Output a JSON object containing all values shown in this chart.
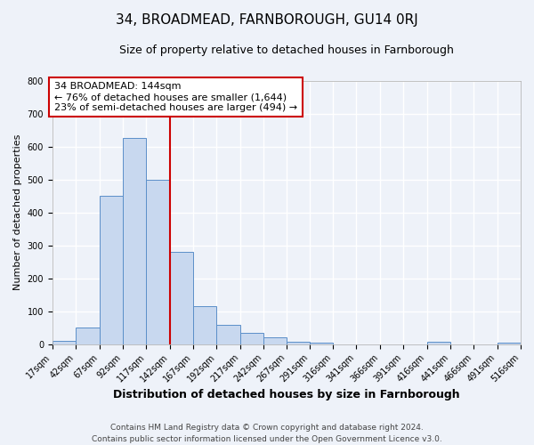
{
  "title": "34, BROADMEAD, FARNBOROUGH, GU14 0RJ",
  "subtitle": "Size of property relative to detached houses in Farnborough",
  "xlabel": "Distribution of detached houses by size in Farnborough",
  "ylabel": "Number of detached properties",
  "footer_line1": "Contains HM Land Registry data © Crown copyright and database right 2024.",
  "footer_line2": "Contains public sector information licensed under the Open Government Licence v3.0.",
  "bin_edges": [
    17,
    42,
    67,
    92,
    117,
    142,
    167,
    192,
    217,
    242,
    267,
    291,
    316,
    341,
    366,
    391,
    416,
    441,
    466,
    491,
    516
  ],
  "bin_counts": [
    10,
    52,
    450,
    625,
    500,
    280,
    115,
    60,
    35,
    20,
    8,
    5,
    0,
    0,
    0,
    0,
    7,
    0,
    0,
    5
  ],
  "bar_color": "#c8d8ef",
  "bar_edge_color": "#5b8fc9",
  "vertical_line_x": 142,
  "vertical_line_color": "#cc0000",
  "annotation_title": "34 BROADMEAD: 144sqm",
  "annotation_line1": "← 76% of detached houses are smaller (1,644)",
  "annotation_line2": "23% of semi-detached houses are larger (494) →",
  "annotation_box_color": "#cc0000",
  "ylim": [
    0,
    800
  ],
  "yticks": [
    0,
    100,
    200,
    300,
    400,
    500,
    600,
    700,
    800
  ],
  "background_color": "#eef2f9",
  "grid_color": "#ffffff",
  "title_fontsize": 11,
  "subtitle_fontsize": 9,
  "xlabel_fontsize": 9,
  "ylabel_fontsize": 8,
  "tick_fontsize": 7,
  "annotation_fontsize": 8,
  "footer_fontsize": 6.5
}
